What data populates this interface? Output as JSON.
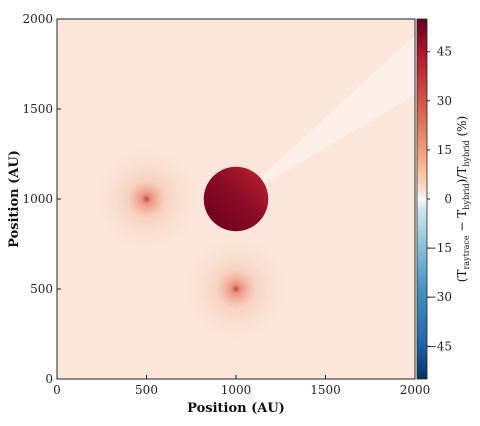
{
  "chart_data": {
    "type": "heatmap",
    "title": "",
    "xlabel": "Position (AU)",
    "ylabel": "Position (AU)",
    "xlim": [
      0,
      2000
    ],
    "ylim": [
      0,
      2000
    ],
    "xticks": [
      "0",
      "500",
      "1000",
      "1500",
      "2000"
    ],
    "yticks": [
      "0",
      "500",
      "1000",
      "1500",
      "2000"
    ],
    "colorbar": {
      "label_main": "(T",
      "label_sub1": "raytrace",
      "label_mid": " − T",
      "label_sub2": "hybrid",
      "label_mid2": ")/T",
      "label_sub3": "hybrid",
      "label_tail": " (%)",
      "range": [
        -55,
        55
      ],
      "ticks": [
        "45",
        "30",
        "15",
        "0",
        "−15",
        "−30",
        "−45"
      ],
      "tick_values": [
        45,
        30,
        15,
        0,
        -15,
        -30,
        -45
      ],
      "colormap": "RdBu_r"
    },
    "background_value": 4,
    "features": [
      {
        "kind": "disk",
        "x": 1000,
        "y": 1000,
        "radius": 265,
        "value_min": 40,
        "value_max": 55
      },
      {
        "kind": "point_source",
        "x": 500,
        "y": 1000,
        "peak": 25
      },
      {
        "kind": "point_source",
        "x": 1000,
        "y": 500,
        "peak": 25
      }
    ]
  }
}
